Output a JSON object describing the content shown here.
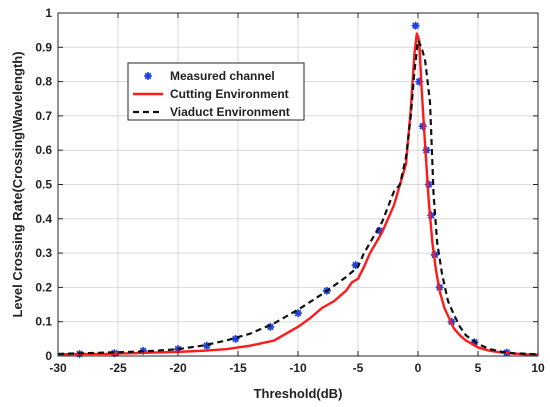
{
  "chart_data": {
    "type": "line",
    "title": "",
    "xlabel": "Threshold(dB)",
    "ylabel": "Level Crossing Rate(Crossing\\Wavelength)",
    "xlim": [
      -30,
      10
    ],
    "ylim": [
      0,
      1
    ],
    "xticks": [
      -30,
      -25,
      -20,
      -15,
      -10,
      -5,
      0,
      5,
      10
    ],
    "yticks": [
      0,
      0.1,
      0.2,
      0.3,
      0.4,
      0.5,
      0.6,
      0.7,
      0.8,
      0.9,
      1
    ],
    "xtick_labels": [
      "-30",
      "-25",
      "-20",
      "-15",
      "-10",
      "-5",
      "0",
      "5",
      "10"
    ],
    "ytick_labels": [
      "0",
      "0.1",
      "0.2",
      "0.3",
      "0.4",
      "0.5",
      "0.6",
      "0.7",
      "0.8",
      "0.9",
      "1"
    ],
    "grid": true,
    "legend_position": "top-left",
    "series": [
      {
        "name": "Measured channel",
        "style": "markers",
        "marker": "asterisk",
        "color": "#1f3fe0",
        "x": [
          -28.2,
          -25.3,
          -22.9,
          -20.0,
          -17.6,
          -15.2,
          -12.3,
          -10.0,
          -7.6,
          -5.2,
          -3.2,
          -0.2,
          0.1,
          0.4,
          0.7,
          0.9,
          1.1,
          1.4,
          1.8,
          2.8,
          4.7,
          7.4
        ],
        "y": [
          0.006,
          0.008,
          0.015,
          0.02,
          0.03,
          0.05,
          0.085,
          0.125,
          0.19,
          0.265,
          0.365,
          0.963,
          0.8,
          0.67,
          0.6,
          0.5,
          0.41,
          0.295,
          0.2,
          0.1,
          0.04,
          0.01
        ]
      },
      {
        "name": "Cutting Environment",
        "style": "solid",
        "color": "#ff1a1a",
        "x": [
          -30,
          -28,
          -26,
          -24,
          -22,
          -20,
          -18,
          -16,
          -14,
          -12,
          -10,
          -9,
          -8,
          -7,
          -6,
          -5.5,
          -5,
          -4.5,
          -4,
          -3.5,
          -3,
          -2.5,
          -2,
          -1.5,
          -1,
          -0.6,
          -0.3,
          -0.1,
          0.1,
          0.3,
          0.6,
          0.9,
          1.2,
          1.5,
          1.8,
          2.2,
          2.6,
          3,
          3.5,
          4,
          4.5,
          5,
          6,
          7,
          8,
          9,
          10
        ],
        "y": [
          0.005,
          0.006,
          0.006,
          0.008,
          0.01,
          0.012,
          0.015,
          0.02,
          0.03,
          0.045,
          0.085,
          0.11,
          0.14,
          0.16,
          0.19,
          0.215,
          0.225,
          0.26,
          0.3,
          0.33,
          0.36,
          0.4,
          0.44,
          0.5,
          0.56,
          0.72,
          0.88,
          0.94,
          0.92,
          0.78,
          0.61,
          0.45,
          0.33,
          0.25,
          0.19,
          0.14,
          0.11,
          0.08,
          0.06,
          0.045,
          0.035,
          0.025,
          0.015,
          0.01,
          0.007,
          0.005,
          0.004
        ]
      },
      {
        "name": "Viaduct Environment",
        "style": "dashed",
        "color": "#111111",
        "x": [
          -30,
          -28,
          -26,
          -24,
          -22,
          -20,
          -18,
          -16,
          -14,
          -12,
          -10,
          -8,
          -7,
          -6,
          -5,
          -4.5,
          -4,
          -3,
          -2,
          -1.5,
          -1,
          -0.6,
          -0.3,
          0,
          0.3,
          0.6,
          1,
          1.3,
          1.6,
          2,
          2.5,
          3,
          3.5,
          4,
          5,
          6,
          7,
          8,
          10
        ],
        "y": [
          0.006,
          0.008,
          0.01,
          0.012,
          0.015,
          0.02,
          0.03,
          0.045,
          0.065,
          0.095,
          0.135,
          0.18,
          0.205,
          0.23,
          0.26,
          0.3,
          0.33,
          0.39,
          0.48,
          0.5,
          0.58,
          0.7,
          0.83,
          0.92,
          0.9,
          0.86,
          0.74,
          0.47,
          0.33,
          0.24,
          0.16,
          0.12,
          0.085,
          0.06,
          0.035,
          0.02,
          0.012,
          0.008,
          0.005
        ]
      }
    ]
  }
}
